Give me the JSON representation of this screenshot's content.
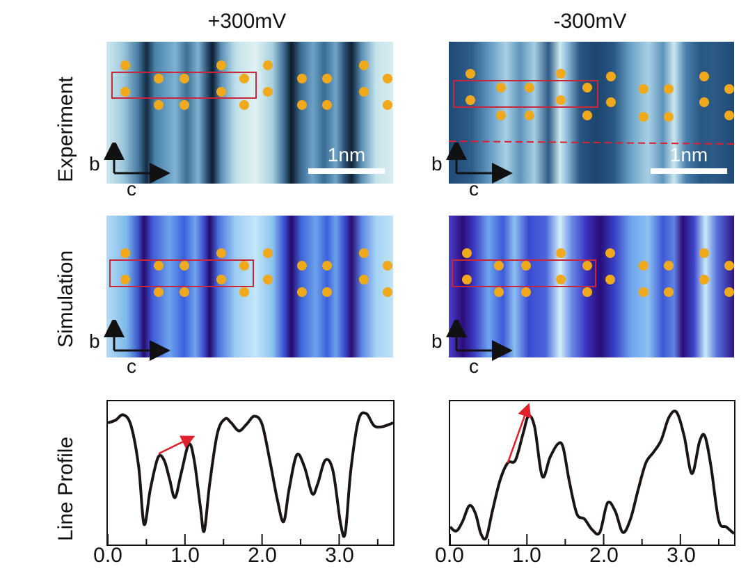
{
  "columns": [
    {
      "title": "+300mV"
    },
    {
      "title": "-300mV"
    }
  ],
  "rows": [
    {
      "label": "Experiment"
    },
    {
      "label": "Simulation"
    },
    {
      "label": "Line Profile"
    }
  ],
  "axes": {
    "b": "b",
    "c": "c"
  },
  "scale_bar": "1nm",
  "colors": {
    "atom": "#f0a81c",
    "unit_cell_box": "#c8263a",
    "arrow": "#e0202a",
    "exp_dark": "#0d2238",
    "exp_light": "#d8eef0",
    "sim_dark": "#2a0a6e",
    "sim_light": "#bfe3f8"
  },
  "chart_data": [
    {
      "type": "line",
      "title": "+300mV",
      "xlabel": "",
      "ylabel": "Line Profile",
      "xlim": [
        0.0,
        3.7
      ],
      "xticks": [
        "0.0",
        "1.0",
        "2.0",
        "3.0"
      ],
      "series": [
        {
          "x": [
            0.0,
            0.1,
            0.2,
            0.3,
            0.4,
            0.47,
            0.55,
            0.65,
            0.73,
            0.8,
            0.87,
            0.95,
            1.05,
            1.12,
            1.2,
            1.25,
            1.32,
            1.42,
            1.52,
            1.6,
            1.7,
            1.8,
            1.9,
            2.0,
            2.1,
            2.2,
            2.28,
            2.35,
            2.45,
            2.55,
            2.65,
            2.72,
            2.82,
            2.92,
            3.02,
            3.08,
            3.15,
            3.25,
            3.35,
            3.45,
            3.55,
            3.7
          ],
          "values": [
            0.88,
            0.9,
            0.94,
            0.86,
            0.55,
            0.12,
            0.38,
            0.62,
            0.6,
            0.46,
            0.32,
            0.5,
            0.72,
            0.6,
            0.25,
            0.07,
            0.42,
            0.8,
            0.91,
            0.88,
            0.82,
            0.87,
            0.93,
            0.87,
            0.6,
            0.3,
            0.14,
            0.38,
            0.64,
            0.55,
            0.35,
            0.42,
            0.6,
            0.52,
            0.12,
            0.06,
            0.52,
            0.9,
            0.95,
            0.86,
            0.85,
            0.88
          ]
        }
      ]
    },
    {
      "type": "line",
      "title": "-300mV",
      "xlabel": "",
      "ylabel": "",
      "xlim": [
        0.0,
        3.7
      ],
      "xticks": [
        "0.0",
        "1.0",
        "2.0",
        "3.0"
      ],
      "series": [
        {
          "x": [
            0.0,
            0.08,
            0.16,
            0.25,
            0.33,
            0.4,
            0.47,
            0.55,
            0.65,
            0.75,
            0.85,
            0.95,
            1.02,
            1.1,
            1.2,
            1.3,
            1.4,
            1.47,
            1.55,
            1.65,
            1.75,
            1.85,
            1.95,
            2.05,
            2.15,
            2.25,
            2.35,
            2.45,
            2.55,
            2.65,
            2.75,
            2.85,
            2.95,
            3.05,
            3.15,
            3.25,
            3.32,
            3.4,
            3.5,
            3.6,
            3.7
          ],
          "values": [
            0.1,
            0.07,
            0.14,
            0.26,
            0.2,
            0.05,
            0.02,
            0.22,
            0.45,
            0.58,
            0.6,
            0.8,
            0.93,
            0.85,
            0.48,
            0.62,
            0.72,
            0.7,
            0.45,
            0.2,
            0.16,
            0.08,
            0.06,
            0.28,
            0.22,
            0.06,
            0.16,
            0.38,
            0.58,
            0.66,
            0.75,
            0.92,
            0.96,
            0.78,
            0.5,
            0.74,
            0.78,
            0.55,
            0.15,
            0.1,
            0.05
          ]
        }
      ]
    }
  ]
}
